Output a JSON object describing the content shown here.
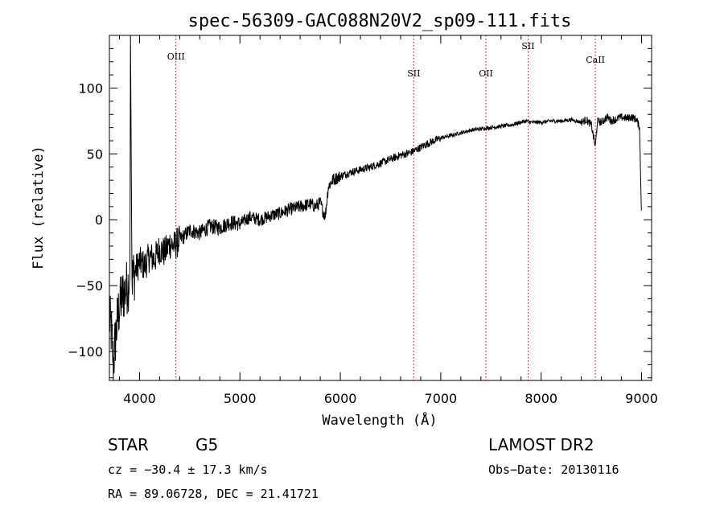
{
  "chart_data": {
    "type": "line",
    "title": "spec-56309-GAC088N20V2_sp09-111.fits",
    "xlabel": "Wavelength (Å)",
    "ylabel": "Flux (relative)",
    "xlim": [
      3700,
      9100
    ],
    "ylim": [
      -122,
      140
    ],
    "xticks": [
      4000,
      5000,
      6000,
      7000,
      8000,
      9000
    ],
    "yticks": [
      -100,
      -50,
      0,
      50,
      100
    ],
    "grid": false,
    "reference_lines": [
      {
        "label": "OIII",
        "x": 4363
      },
      {
        "label": "SII",
        "x": 6731
      },
      {
        "label": "OII",
        "x": 7450
      },
      {
        "label": "SII",
        "x": 7870
      },
      {
        "label": "CaII",
        "x": 8540
      }
    ],
    "series": [
      {
        "x": [
          3700,
          3720,
          3740,
          3760,
          3790,
          3820,
          3850,
          3880,
          3905,
          3910,
          3915,
          3925,
          3950,
          4000,
          4050,
          4100,
          4150,
          4200,
          4250,
          4300,
          4350,
          4400,
          4450,
          4500,
          4600,
          4700,
          4800,
          4900,
          5000,
          5100,
          5200,
          5300,
          5400,
          5500,
          5600,
          5700,
          5750,
          5800,
          5830,
          5850,
          5880,
          5920,
          6000,
          6100,
          6200,
          6300,
          6400,
          6500,
          6600,
          6700,
          6800,
          6900,
          7000,
          7100,
          7200,
          7300,
          7400,
          7500,
          7600,
          7700,
          7800,
          7850,
          7900,
          8000,
          8100,
          8200,
          8300,
          8400,
          8450,
          8500,
          8540,
          8560,
          8600,
          8660,
          8700,
          8800,
          8850,
          8900,
          8950,
          8980,
          9000
        ],
        "values": [
          -75,
          -85,
          -110,
          -90,
          -70,
          -60,
          -55,
          -50,
          -45,
          140,
          75,
          -45,
          -40,
          -32,
          -35,
          -28,
          -30,
          -22,
          -25,
          -18,
          -20,
          -15,
          -12,
          -8,
          -10,
          -5,
          -6,
          -2,
          -3,
          2,
          0,
          3,
          5,
          8,
          10,
          12,
          10,
          13,
          6,
          3,
          25,
          30,
          33,
          36,
          38,
          40,
          43,
          46,
          49,
          51,
          55,
          59,
          62,
          64,
          66,
          68,
          69,
          70,
          71,
          72,
          74,
          75,
          74,
          74,
          75,
          75,
          76,
          74,
          76,
          72,
          55,
          75,
          74,
          78,
          75,
          78,
          77,
          78,
          76,
          70,
          0
        ]
      }
    ]
  },
  "info": {
    "object_class": "STAR",
    "subclass": "G5",
    "survey": "LAMOST DR2",
    "cz": "cz = −30.4 ± 17.3 km/s",
    "obs_date": "Obs−Date: 20130116",
    "coords": "RA =  89.06728, DEC =  21.41721"
  }
}
